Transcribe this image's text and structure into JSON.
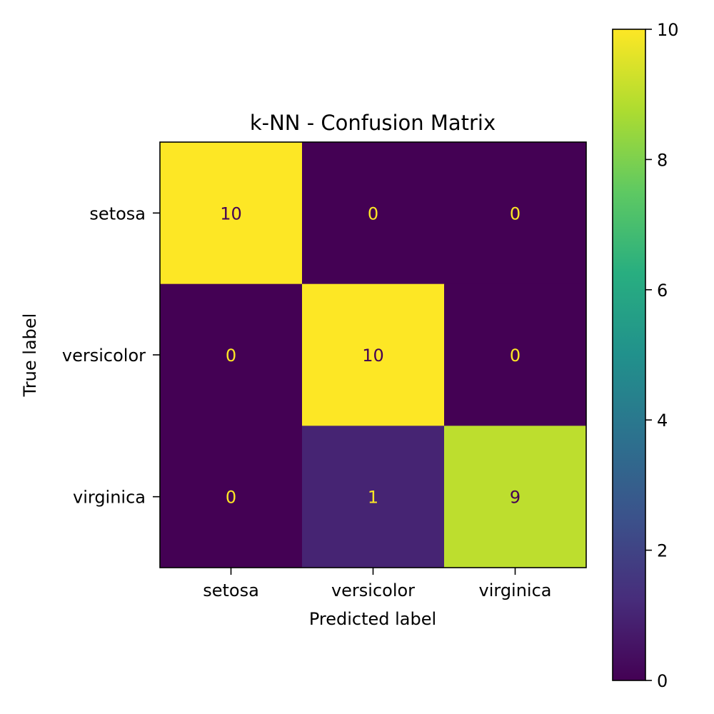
{
  "chart_data": {
    "type": "heatmap",
    "title": "k-NN - Confusion Matrix",
    "xlabel": "Predicted label",
    "ylabel": "True label",
    "x_categories": [
      "setosa",
      "versicolor",
      "virginica"
    ],
    "y_categories": [
      "setosa",
      "versicolor",
      "virginica"
    ],
    "values": [
      [
        10,
        0,
        0
      ],
      [
        0,
        10,
        0
      ],
      [
        0,
        1,
        9
      ]
    ],
    "colormap": "viridis",
    "colorbar": {
      "min": 0,
      "max": 10,
      "ticks": [
        "0",
        "2",
        "4",
        "6",
        "8",
        "10"
      ]
    },
    "grid": false
  }
}
